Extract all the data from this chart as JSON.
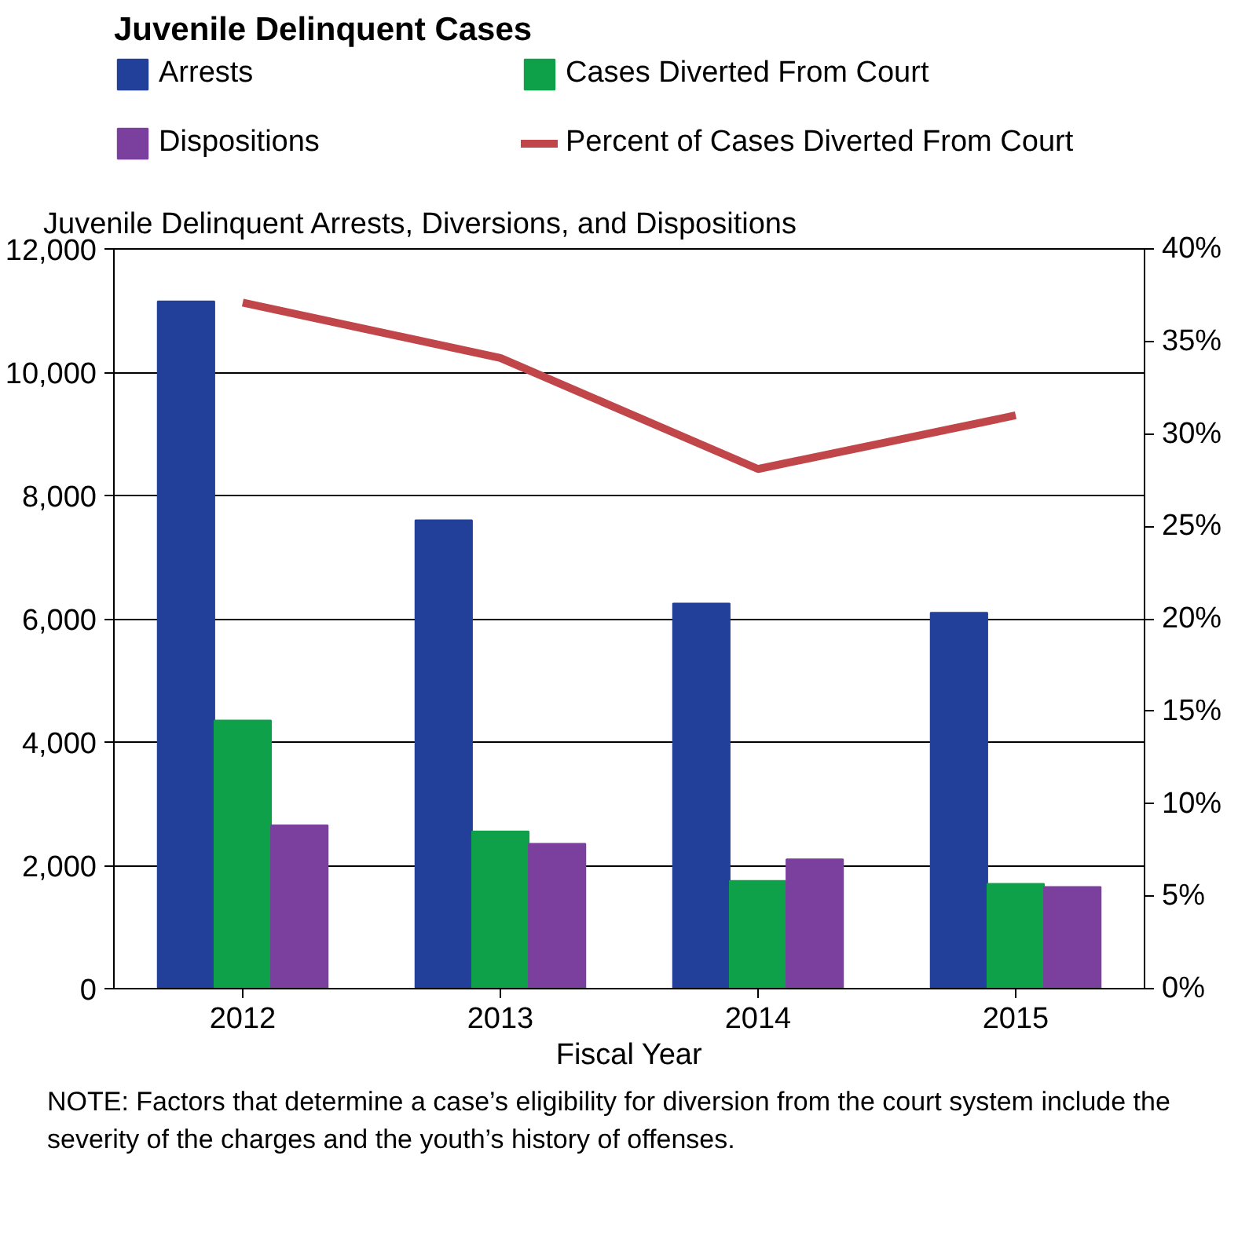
{
  "chart_data": {
    "type": "bar",
    "title": "Juvenile Delinquent Cases",
    "subtitle": "Juvenile Delinquent Arrests, Diversions, and Dispositions",
    "xlabel": "Fiscal Year",
    "categories": [
      "2012",
      "2013",
      "2014",
      "2015"
    ],
    "series": [
      {
        "name": "Arrests",
        "color": "#22409a",
        "values": [
          11150,
          7600,
          6250,
          6100
        ]
      },
      {
        "name": "Cases Diverted From Court",
        "color": "#0fa04a",
        "values": [
          4350,
          2550,
          1750,
          1700
        ]
      },
      {
        "name": "Dispositions",
        "color": "#7b3f9e",
        "values": [
          2650,
          2350,
          2100,
          1650
        ]
      },
      {
        "name": "Percent of Cases Diverted From Court",
        "color": "#c0464a",
        "type": "line",
        "axis": "y2",
        "values": [
          37.1,
          34.1,
          28.1,
          31.0
        ]
      }
    ],
    "ylim": [
      0,
      12000
    ],
    "yticks": [
      {
        "value": 0,
        "label": "0"
      },
      {
        "value": 2000,
        "label": "2,000"
      },
      {
        "value": 4000,
        "label": "4,000"
      },
      {
        "value": 6000,
        "label": "6,000"
      },
      {
        "value": 8000,
        "label": "8,000"
      },
      {
        "value": 10000,
        "label": "10,000"
      },
      {
        "value": 12000,
        "label": "12,000"
      }
    ],
    "y2lim": [
      0,
      40
    ],
    "y2ticks": [
      {
        "value": 0,
        "label": "0%"
      },
      {
        "value": 5,
        "label": "5%"
      },
      {
        "value": 10,
        "label": "10%"
      },
      {
        "value": 15,
        "label": "15%"
      },
      {
        "value": 20,
        "label": "20%"
      },
      {
        "value": 25,
        "label": "25%"
      },
      {
        "value": 30,
        "label": "30%"
      },
      {
        "value": 35,
        "label": "35%"
      },
      {
        "value": 40,
        "label": "40%"
      }
    ],
    "grid": "y",
    "legend": "top",
    "marker": "none",
    "line_style": "solid",
    "annotations": [
      "NOTE: Factors that determine a case’s eligibility for diversion from the court system include the severity of the charges and the youth’s history of offenses."
    ]
  }
}
